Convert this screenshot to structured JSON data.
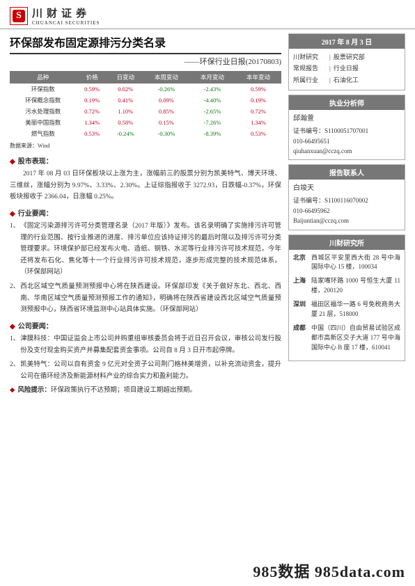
{
  "header": {
    "company_cn": "川财证券",
    "company_en": "CHUANCAI SECURITIES"
  },
  "title": {
    "main": "环保部发布固定源排污分类名录",
    "sub": "——环保行业日报(20170803)"
  },
  "table": {
    "columns": [
      "品种",
      "价格",
      "日变动",
      "本周变动",
      "本月变动",
      "本年变动"
    ],
    "rows": [
      [
        "环保指数",
        "0.59%",
        "0.02%",
        "-0.26%",
        "-2.43%",
        "0.59%"
      ],
      [
        "环保概念指数",
        "0.19%",
        "0.41%",
        "0.09%",
        "-4.40%",
        "0.19%"
      ],
      [
        "污水处理指数",
        "0.72%",
        "1.10%",
        "0.85%",
        "-2.65%",
        "0.72%"
      ],
      [
        "美丽中国指数",
        "1.34%",
        "0.58%",
        "0.15%",
        "-7.26%",
        "1.34%"
      ],
      [
        "燃气指数",
        "0.53%",
        "-0.24%",
        "-0.30%",
        "-8.39%",
        "0.53%"
      ]
    ],
    "colors": {
      "pos": "#c00020",
      "neg": "#0a7a0a",
      "text": "#333333"
    },
    "source": "数据来源：Wind"
  },
  "sections": {
    "market": {
      "head": "股市表现：",
      "text": "2017 年 08 月 03 日环保板块以上涨为主，涨幅前三的股票分别为凯美特气、博天环境、三维丝，涨幅分别为 9.97%、3.33%、2.30%。上证综指报收于 3272.93，日跌幅-0.37%，环保板块报收于 2366.04，日涨幅 0.25%。"
    },
    "industry": {
      "head": "行业要闻：",
      "items": [
        "《固定污染源排污许可分类管理名录（2017 年版）》发布。该名录明确了实施排污许可管理的行业范围、按行业推进的进度、排污单位应该持证排污的最后时限以及排污许可分类管理要求。环境保护部已经发布火电、造纸、钢铁、水泥等行业排污许可技术规范，今年还将发布石化、焦化等十一个行业排污许可技术规范，逐步形成完整的技术规范体系。（环保部网站）",
        "西北区域空气质量预测预报中心将在陕西建设。环保部印发《关于做好东北、西北、西南、华南区域空气质量预测预报工作的通知》，明确将在陕西省建设西北区域空气质量预测预报中心，陕西省环境监测中心站具体实施。（环保部网站）"
      ]
    },
    "company": {
      "head": "公司要闻：",
      "items": [
        "津膜科技：中国证监会上市公司并购重组审核委员会将于近日召开会议，审核公司发行股份及支付现金购买资产并募集配套资金事项。公司自 8 月 3 日开市起停牌。",
        "凯美特气：公司以自有资金 9 亿元对全资子公司荆门格林美增资，以补充流动资金，提升公司在循环经济及新能源材料产业的综合实力和盈利能力。"
      ]
    },
    "risk": {
      "label": "风险提示：",
      "text": "环保政策执行不达预期；项目建设工期超出预期。"
    }
  },
  "right": {
    "date": "2017 年 8 月 3 日",
    "info": [
      {
        "k": "川财研究",
        "v": "股票研究部"
      },
      {
        "k": "常规报告",
        "v": "行业日报"
      },
      {
        "k": "所属行业",
        "v": "石油化工"
      }
    ],
    "analyst": {
      "head": "执业分析师",
      "name": "邱瀚萱",
      "lines": [
        "证书编号：S1100051707001",
        "010-66495651",
        "qiuhanxuan@cczq.com"
      ]
    },
    "contact": {
      "head": "报告联系人",
      "name": "白竣天",
      "lines": [
        "证书编号：S1100116070002",
        "010-66495962",
        "Baijuntian@cczq.com"
      ]
    },
    "office": {
      "head": "川财研究所",
      "list": [
        {
          "city": "北京",
          "addr": "西城区平安里西大街 28 号中海国际中心 15 楼，100034"
        },
        {
          "city": "上海",
          "addr": "陆家嘴环路 1000 号恒生大厦 11 楼，200120"
        },
        {
          "city": "深圳",
          "addr": "福田区福华一路 6 号免税商务大厦 21 层，518000"
        },
        {
          "city": "成都",
          "addr": "中国（四川）自由贸易试验区成都市高新区交子大道 177 号中海国际中心 B 座 17 楼，610041"
        }
      ]
    }
  },
  "footer": "985数据 985data.com"
}
